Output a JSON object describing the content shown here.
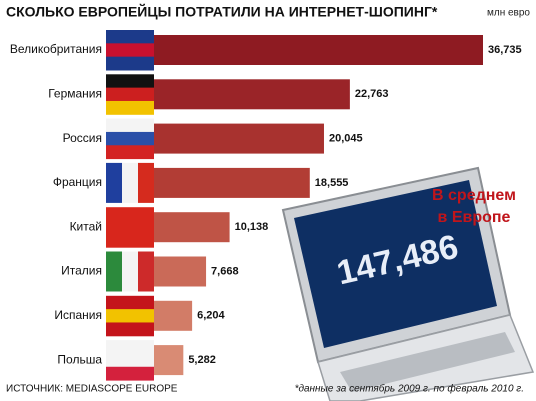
{
  "chart_data": {
    "type": "bar",
    "orientation": "horizontal",
    "title": "СКОЛЬКО ЕВРОПЕЙЦЫ ПОТРАТИЛИ НА ИНТЕРНЕТ-ШОПИНГ*",
    "unit": "млн евро",
    "categories": [
      "Великобритания",
      "Германия",
      "Россия",
      "Франция",
      "Китай",
      "Италия",
      "Испания",
      "Польша"
    ],
    "values": [
      36735,
      22763,
      20045,
      18555,
      10138,
      7668,
      6204,
      5282
    ],
    "value_labels": [
      "36,735",
      "22,763",
      "20,045",
      "18,555",
      "10,138",
      "7,668",
      "6,204",
      "5,282"
    ],
    "colors": [
      "#8e1b22",
      "#9a2428",
      "#a8322f",
      "#b23d35",
      "#bf5446",
      "#ca6a58",
      "#d27c67",
      "#d98b74"
    ],
    "annotations": {
      "average_value": "147,486",
      "average_caption": [
        "В среднем",
        "в Европе"
      ]
    },
    "source": "ИСТОЧНИК: MEDIASCOPE EUROPE",
    "footnote": "*данные за сентябрь 2009 г. по февраль 2010 г."
  }
}
